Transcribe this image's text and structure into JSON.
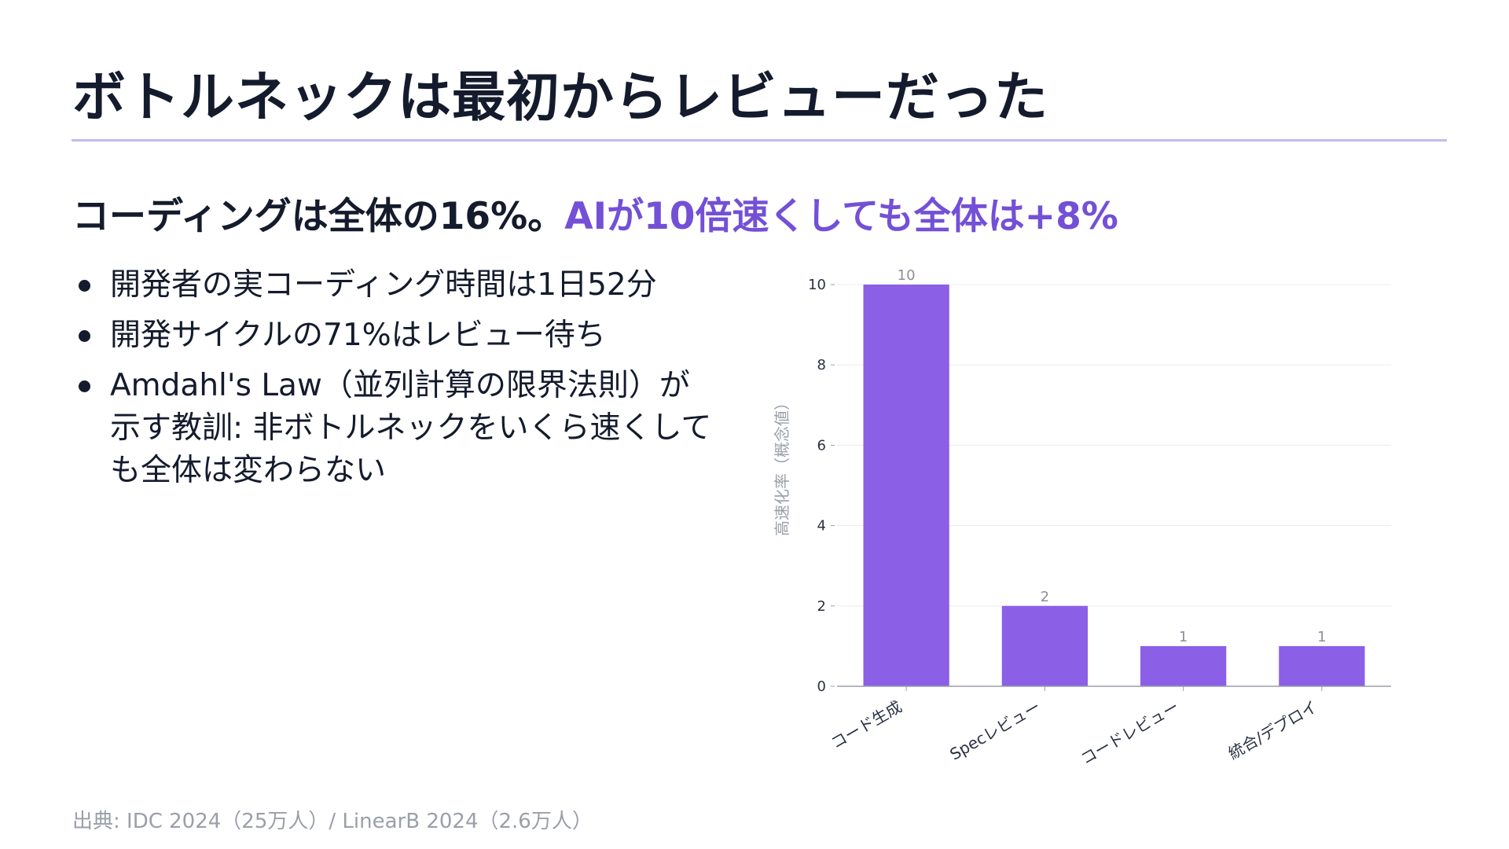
{
  "title": "ボトルネックは最初からレビューだった",
  "subtitle": {
    "main": "コーディングは全体の16%。",
    "accent": "AIが10倍速くしても全体は+8%"
  },
  "bullets": [
    "開発者の実コーディング時間は1日52分",
    "開発サイクルの71%はレビュー待ち",
    "Amdahl's Law（並列計算の限界法則）が示す教訓: 非ボトルネックをいくら速くしても全体は変わらない"
  ],
  "source": "出典: IDC 2024（25万人）/ LinearB 2024（2.6万人）",
  "colors": {
    "accent": "#7350d6",
    "bar": "#8b5fe6",
    "rule": "#c6b8f2",
    "text": "#141b2d",
    "muted": "#9a9fa8"
  },
  "chart_data": {
    "type": "bar",
    "categories": [
      "コード生成",
      "Specレビュー",
      "コードレビュー",
      "統合/デプロイ"
    ],
    "values": [
      10,
      2,
      1,
      1
    ],
    "data_labels": [
      "10",
      "2",
      "1",
      "1"
    ],
    "ylabel": "高速化率（概念値）",
    "xlabel": "",
    "ylim": [
      0,
      10
    ],
    "yticks": [
      0,
      2,
      4,
      6,
      8,
      10
    ],
    "grid": true
  }
}
